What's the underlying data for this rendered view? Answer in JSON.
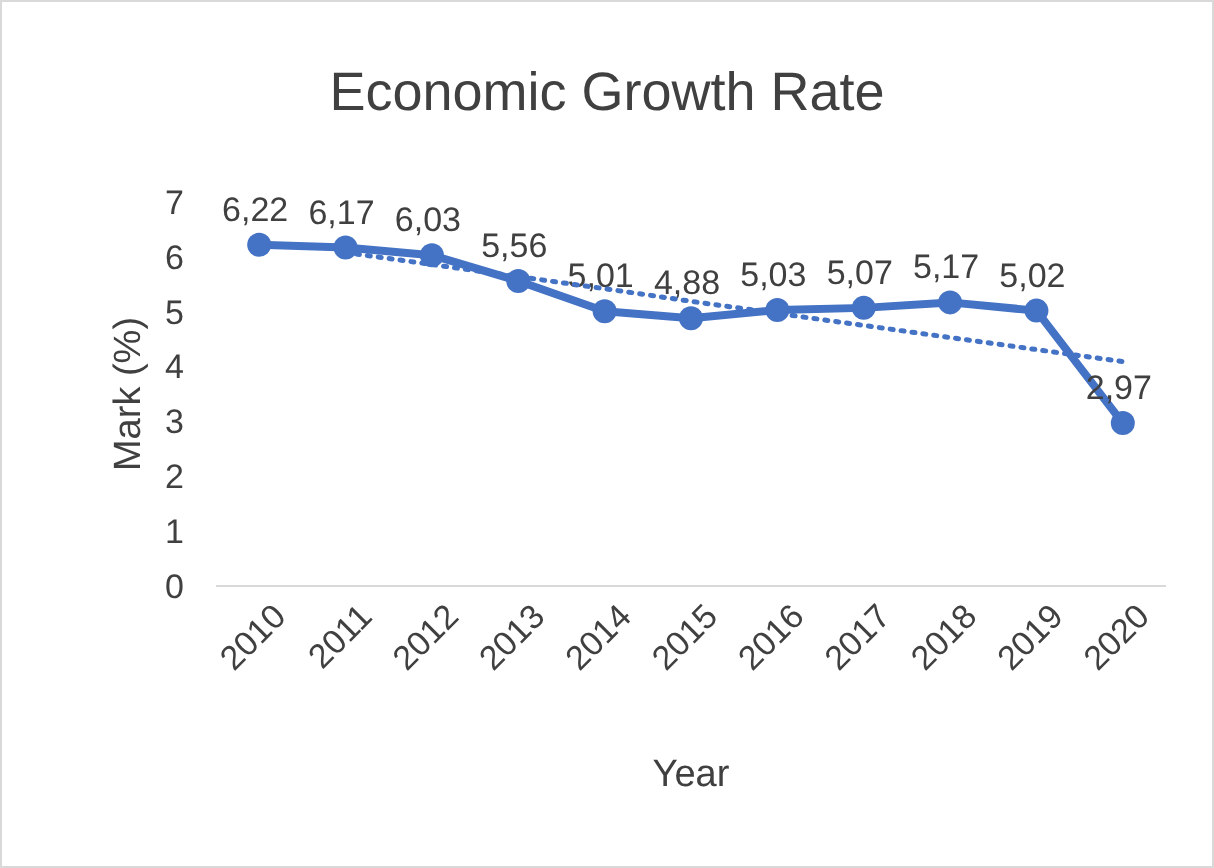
{
  "chart_data": {
    "type": "line",
    "title": "Economic Growth Rate",
    "xlabel": "Year",
    "ylabel": "Mark (%)",
    "categories": [
      "2010",
      "2011",
      "2012",
      "2013",
      "2014",
      "2015",
      "2016",
      "2017",
      "2018",
      "2019",
      "2020"
    ],
    "ylim": [
      0,
      7
    ],
    "yticks": [
      0,
      1,
      2,
      3,
      4,
      5,
      6,
      7
    ],
    "grid": false,
    "series": [
      {
        "color": "#4472c4",
        "values": [
          6.22,
          6.17,
          6.03,
          5.56,
          5.01,
          4.88,
          5.03,
          5.07,
          5.17,
          5.02,
          2.97
        ],
        "value_labels": [
          "6,22",
          "6,17",
          "6,03",
          "5,56",
          "5,01",
          "4,88",
          "5,03",
          "5,07",
          "5,17",
          "5,02",
          "2,97"
        ],
        "marker": "circle",
        "line_style": "solid"
      },
      {
        "type": "line",
        "color": "#4472c4",
        "values": [
          null,
          6.08,
          5.86,
          5.64,
          5.42,
          5.19,
          4.97,
          4.75,
          4.53,
          4.31,
          4.09
        ],
        "marker": "none",
        "line_style": "dotted"
      }
    ]
  }
}
